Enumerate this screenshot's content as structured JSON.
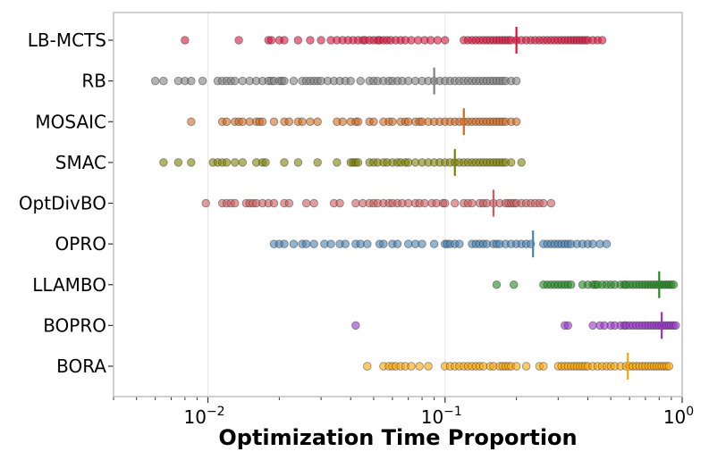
{
  "chart_data": {
    "type": "scatter",
    "title": "",
    "xlabel": "Optimization Time Proportion",
    "ylabel": "",
    "xscale": "log",
    "xlim": [
      0.004,
      1.0
    ],
    "x_ticks": [
      {
        "value": 0.01,
        "base": "10",
        "exp": "−2"
      },
      {
        "value": 0.1,
        "base": "10",
        "exp": "−1"
      },
      {
        "value": 1.0,
        "base": "10",
        "exp": "0"
      }
    ],
    "grid": "vertical major lines",
    "series": [
      {
        "name": "LB-MCTS",
        "color": "#dc143c",
        "marker": 0.2,
        "values": [
          0.008,
          0.0135,
          0.018,
          0.0185,
          0.02,
          0.021,
          0.024,
          0.027,
          0.03,
          0.033,
          0.035,
          0.037,
          0.039,
          0.041,
          0.043,
          0.045,
          0.046,
          0.048,
          0.05,
          0.052,
          0.053,
          0.055,
          0.057,
          0.059,
          0.062,
          0.065,
          0.068,
          0.072,
          0.077,
          0.082,
          0.087,
          0.093,
          0.1,
          0.12,
          0.125,
          0.13,
          0.135,
          0.14,
          0.145,
          0.15,
          0.155,
          0.16,
          0.165,
          0.17,
          0.175,
          0.18,
          0.185,
          0.19,
          0.2,
          0.21,
          0.22,
          0.23,
          0.24,
          0.25,
          0.26,
          0.27,
          0.28,
          0.29,
          0.3,
          0.31,
          0.32,
          0.33,
          0.34,
          0.35,
          0.36,
          0.37,
          0.38,
          0.39,
          0.4,
          0.42,
          0.44,
          0.46
        ]
      },
      {
        "name": "RB",
        "color": "#808080",
        "marker": 0.09,
        "values": [
          0.006,
          0.0065,
          0.0075,
          0.008,
          0.0085,
          0.0095,
          0.011,
          0.0115,
          0.012,
          0.0125,
          0.013,
          0.014,
          0.015,
          0.016,
          0.017,
          0.018,
          0.0185,
          0.019,
          0.02,
          0.0205,
          0.021,
          0.023,
          0.025,
          0.026,
          0.027,
          0.028,
          0.029,
          0.03,
          0.032,
          0.034,
          0.036,
          0.038,
          0.04,
          0.044,
          0.048,
          0.05,
          0.052,
          0.055,
          0.058,
          0.06,
          0.063,
          0.066,
          0.07,
          0.075,
          0.08,
          0.085,
          0.09,
          0.095,
          0.1,
          0.105,
          0.11,
          0.115,
          0.12,
          0.125,
          0.13,
          0.135,
          0.14,
          0.145,
          0.15,
          0.155,
          0.16,
          0.165,
          0.17,
          0.175,
          0.18,
          0.19,
          0.2
        ]
      },
      {
        "name": "MOSAIC",
        "color": "#d2691e",
        "marker": 0.12,
        "values": [
          0.0085,
          0.0115,
          0.012,
          0.013,
          0.0135,
          0.014,
          0.015,
          0.016,
          0.0165,
          0.017,
          0.019,
          0.021,
          0.022,
          0.024,
          0.025,
          0.027,
          0.029,
          0.035,
          0.037,
          0.04,
          0.042,
          0.043,
          0.048,
          0.05,
          0.055,
          0.058,
          0.06,
          0.065,
          0.068,
          0.07,
          0.075,
          0.078,
          0.08,
          0.085,
          0.09,
          0.095,
          0.1,
          0.105,
          0.11,
          0.115,
          0.12,
          0.125,
          0.13,
          0.135,
          0.14,
          0.145,
          0.15,
          0.155,
          0.16,
          0.165,
          0.17,
          0.175,
          0.18,
          0.19,
          0.2
        ]
      },
      {
        "name": "SMAC",
        "color": "#808000",
        "marker": 0.11,
        "values": [
          0.0065,
          0.0075,
          0.0085,
          0.0105,
          0.011,
          0.0115,
          0.012,
          0.013,
          0.014,
          0.016,
          0.017,
          0.0175,
          0.021,
          0.024,
          0.029,
          0.035,
          0.04,
          0.041,
          0.042,
          0.043,
          0.048,
          0.05,
          0.052,
          0.055,
          0.057,
          0.06,
          0.063,
          0.065,
          0.068,
          0.07,
          0.075,
          0.08,
          0.085,
          0.09,
          0.095,
          0.1,
          0.105,
          0.11,
          0.115,
          0.12,
          0.125,
          0.13,
          0.135,
          0.14,
          0.145,
          0.15,
          0.155,
          0.16,
          0.165,
          0.17,
          0.175,
          0.18,
          0.19,
          0.21
        ]
      },
      {
        "name": "OptDivBO",
        "color": "#cd5c5c",
        "marker": 0.16,
        "values": [
          0.0098,
          0.0115,
          0.012,
          0.0125,
          0.013,
          0.0145,
          0.015,
          0.0155,
          0.016,
          0.017,
          0.018,
          0.019,
          0.021,
          0.022,
          0.026,
          0.028,
          0.034,
          0.036,
          0.042,
          0.045,
          0.048,
          0.05,
          0.052,
          0.055,
          0.058,
          0.06,
          0.063,
          0.066,
          0.07,
          0.075,
          0.078,
          0.082,
          0.088,
          0.092,
          0.098,
          0.1,
          0.11,
          0.12,
          0.125,
          0.13,
          0.14,
          0.145,
          0.15,
          0.16,
          0.17,
          0.18,
          0.185,
          0.19,
          0.195,
          0.2,
          0.21,
          0.22,
          0.23,
          0.24,
          0.25,
          0.26,
          0.28
        ]
      },
      {
        "name": "OPRO",
        "color": "#4682b4",
        "marker": 0.235,
        "values": [
          0.019,
          0.02,
          0.021,
          0.023,
          0.025,
          0.026,
          0.028,
          0.031,
          0.033,
          0.036,
          0.038,
          0.042,
          0.044,
          0.047,
          0.053,
          0.055,
          0.06,
          0.063,
          0.07,
          0.075,
          0.08,
          0.09,
          0.1,
          0.102,
          0.105,
          0.11,
          0.115,
          0.13,
          0.135,
          0.14,
          0.145,
          0.15,
          0.16,
          0.165,
          0.17,
          0.18,
          0.19,
          0.2,
          0.21,
          0.22,
          0.23,
          0.26,
          0.27,
          0.28,
          0.29,
          0.3,
          0.31,
          0.32,
          0.33,
          0.34,
          0.36,
          0.38,
          0.4,
          0.42,
          0.45,
          0.48
        ]
      },
      {
        "name": "LLAMBO",
        "color": "#228b22",
        "marker": 0.8,
        "values": [
          0.165,
          0.195,
          0.26,
          0.27,
          0.28,
          0.29,
          0.3,
          0.31,
          0.32,
          0.33,
          0.34,
          0.38,
          0.4,
          0.42,
          0.43,
          0.44,
          0.46,
          0.48,
          0.5,
          0.52,
          0.55,
          0.57,
          0.58,
          0.6,
          0.62,
          0.64,
          0.66,
          0.68,
          0.7,
          0.72,
          0.74,
          0.76,
          0.78,
          0.8,
          0.82,
          0.84,
          0.86,
          0.88,
          0.9,
          0.92
        ]
      },
      {
        "name": "BOPRO",
        "color": "#9932cc",
        "marker": 0.82,
        "values": [
          0.042,
          0.32,
          0.33,
          0.42,
          0.45,
          0.47,
          0.5,
          0.52,
          0.55,
          0.57,
          0.58,
          0.6,
          0.62,
          0.64,
          0.66,
          0.68,
          0.7,
          0.72,
          0.74,
          0.76,
          0.78,
          0.8,
          0.82,
          0.84,
          0.86,
          0.88,
          0.9,
          0.92,
          0.94
        ]
      },
      {
        "name": "BORA",
        "color": "#ffa500",
        "marker": 0.59,
        "values": [
          0.047,
          0.055,
          0.058,
          0.06,
          0.062,
          0.065,
          0.068,
          0.072,
          0.078,
          0.085,
          0.1,
          0.105,
          0.11,
          0.115,
          0.12,
          0.125,
          0.13,
          0.135,
          0.14,
          0.145,
          0.155,
          0.16,
          0.17,
          0.175,
          0.18,
          0.185,
          0.19,
          0.2,
          0.22,
          0.25,
          0.26,
          0.3,
          0.31,
          0.32,
          0.33,
          0.34,
          0.35,
          0.36,
          0.37,
          0.38,
          0.39,
          0.4,
          0.42,
          0.44,
          0.46,
          0.48,
          0.5,
          0.52,
          0.55,
          0.58,
          0.6,
          0.62,
          0.64,
          0.66,
          0.68,
          0.7,
          0.72,
          0.74,
          0.76,
          0.78,
          0.8,
          0.82,
          0.84,
          0.86,
          0.88
        ]
      }
    ]
  }
}
